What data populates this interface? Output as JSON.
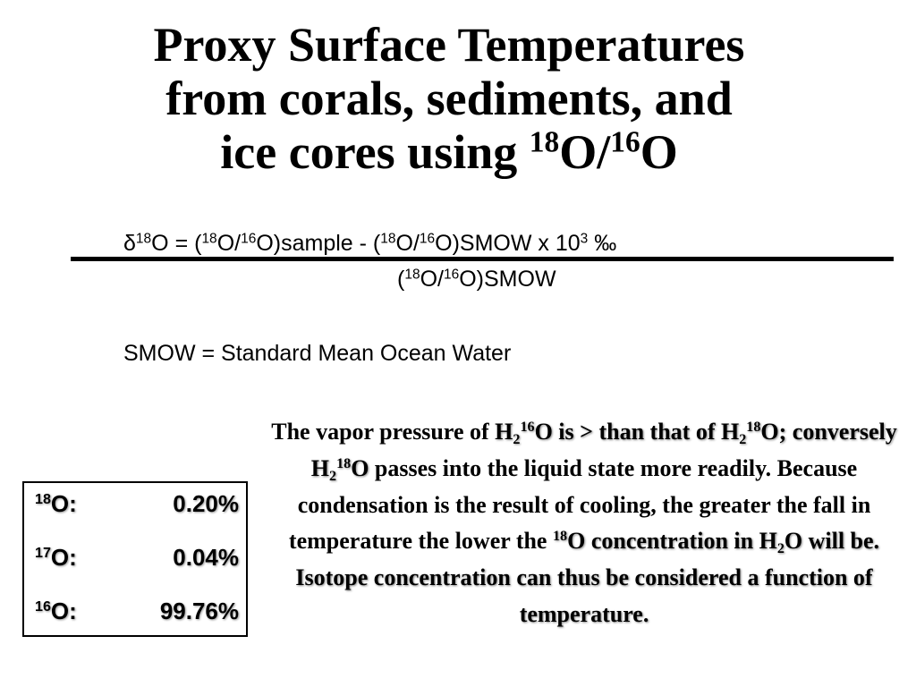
{
  "title": {
    "line1": "Proxy Surface Temperatures",
    "line2": "from corals, sediments, and",
    "line3_text": "ice cores using ",
    "mass_a": "18",
    "elem_a": "O/",
    "mass_b": "16",
    "elem_b": "O"
  },
  "formula": {
    "delta": "δ",
    "m18": "18",
    "m16": "16",
    "t_o_eq": "O = (",
    "t_o_slash": "O/",
    "t_sample": "O)sample - (",
    "t_smow_x": "O)SMOW x 10",
    "exp": "3",
    "permil": " ‰",
    "den_open": "(",
    "den_o_slash": "O/",
    "den_smow": "O)SMOW"
  },
  "smow_definition": "SMOW = Standard Mean Ocean Water",
  "abundances": [
    {
      "mass": "18",
      "symbol": "O:",
      "percent": "0.20%"
    },
    {
      "mass": "17",
      "symbol": "O:",
      "percent": "0.04%"
    },
    {
      "mass": "16",
      "symbol": "O:",
      "percent": "99.76%"
    }
  ],
  "paragraph": {
    "p1": "The vapor pressure of ",
    "h": "H",
    "two": "2",
    "m16": "16",
    "m18": "18",
    "s_o_gt": "O is > than that of",
    "s_o_semi": "O; conversely ",
    "s_o": "O",
    "p2": " passes into the liquid state more readily.  Because condensation is the result of cooling, the greater the fall in temperature the lower the ",
    "s_conc": "O concentration in ",
    "s_h2o_end": "O will be.  Isotope concentration can thus be considered a function of temperature."
  }
}
